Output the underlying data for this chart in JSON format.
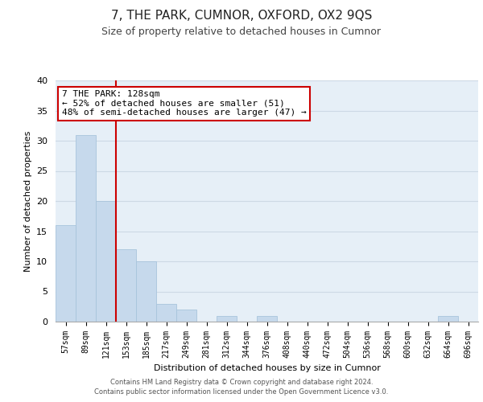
{
  "title": "7, THE PARK, CUMNOR, OXFORD, OX2 9QS",
  "subtitle": "Size of property relative to detached houses in Cumnor",
  "xlabel": "Distribution of detached houses by size in Cumnor",
  "ylabel": "Number of detached properties",
  "bin_labels": [
    "57sqm",
    "89sqm",
    "121sqm",
    "153sqm",
    "185sqm",
    "217sqm",
    "249sqm",
    "281sqm",
    "312sqm",
    "344sqm",
    "376sqm",
    "408sqm",
    "440sqm",
    "472sqm",
    "504sqm",
    "536sqm",
    "568sqm",
    "600sqm",
    "632sqm",
    "664sqm",
    "696sqm"
  ],
  "bar_heights": [
    16,
    31,
    20,
    12,
    10,
    3,
    2,
    0,
    1,
    0,
    1,
    0,
    0,
    0,
    0,
    0,
    0,
    0,
    0,
    1,
    0
  ],
  "bar_color": "#c6d9ec",
  "bar_edge_color": "#a8c4dc",
  "vline_color": "#cc0000",
  "annotation_line1": "7 THE PARK: 128sqm",
  "annotation_line2": "← 52% of detached houses are smaller (51)",
  "annotation_line3": "48% of semi-detached houses are larger (47) →",
  "annotation_box_color": "#ffffff",
  "annotation_box_edge": "#cc0000",
  "ylim": [
    0,
    40
  ],
  "yticks": [
    0,
    5,
    10,
    15,
    20,
    25,
    30,
    35,
    40
  ],
  "grid_color": "#cdd9e5",
  "background_color": "#e6eff7",
  "footer_line1": "Contains HM Land Registry data © Crown copyright and database right 2024.",
  "footer_line2": "Contains public sector information licensed under the Open Government Licence v3.0.",
  "title_fontsize": 11,
  "subtitle_fontsize": 9,
  "tick_fontsize": 7,
  "ylabel_fontsize": 8,
  "xlabel_fontsize": 8,
  "annotation_fontsize": 8,
  "footer_fontsize": 6
}
